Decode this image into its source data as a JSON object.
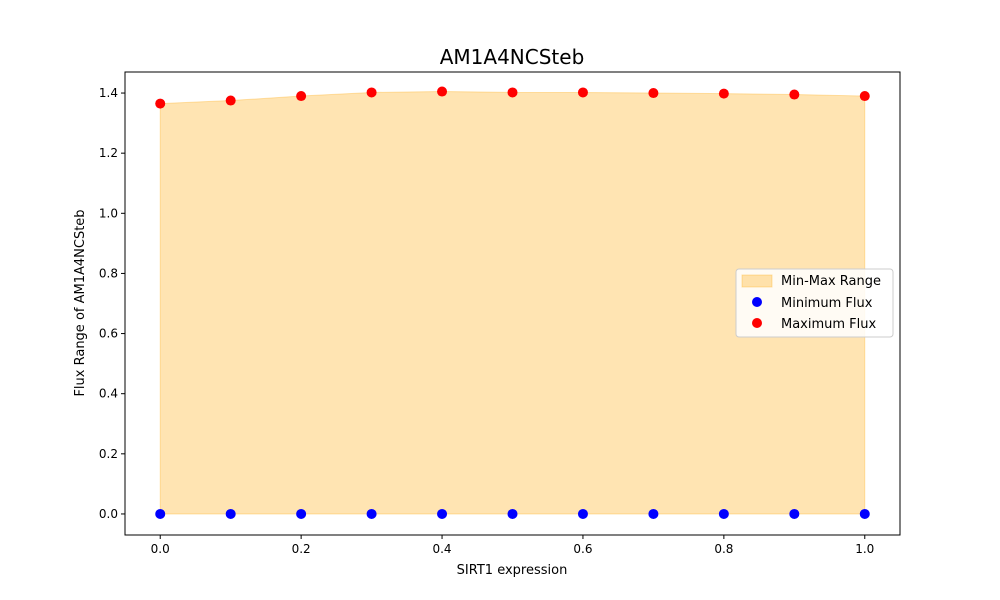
{
  "chart_data": {
    "type": "scatter",
    "title": "AM1A4NCSteb",
    "xlabel": "SIRT1 expression",
    "ylabel": "Flux Range of AM1A4NCSteb",
    "x": [
      0.0,
      0.1,
      0.2,
      0.3,
      0.4,
      0.5,
      0.6,
      0.7,
      0.8,
      0.9,
      1.0
    ],
    "series": [
      {
        "name": "Minimum Flux",
        "color": "#0000ff",
        "marker": "circle",
        "values": [
          0,
          0,
          0,
          0,
          0,
          0,
          0,
          0,
          0,
          0,
          0
        ]
      },
      {
        "name": "Maximum Flux",
        "color": "#ff0000",
        "marker": "circle",
        "values": [
          1.365,
          1.375,
          1.39,
          1.402,
          1.405,
          1.402,
          1.402,
          1.4,
          1.398,
          1.395,
          1.39
        ]
      }
    ],
    "fill": {
      "name": "Min-Max Range",
      "color": "#ffa500",
      "alpha": 0.3
    },
    "xlim": [
      -0.05,
      1.05
    ],
    "ylim": [
      -0.07,
      1.47
    ],
    "xticks": [
      "0.0",
      "0.2",
      "0.4",
      "0.6",
      "0.8",
      "1.0"
    ],
    "yticks": [
      "0.0",
      "0.2",
      "0.4",
      "0.6",
      "0.8",
      "1.0",
      "1.2",
      "1.4"
    ],
    "legend": {
      "placement": "center-right",
      "entries": [
        "Min-Max Range",
        "Minimum Flux",
        "Maximum Flux"
      ]
    },
    "grid": false
  }
}
